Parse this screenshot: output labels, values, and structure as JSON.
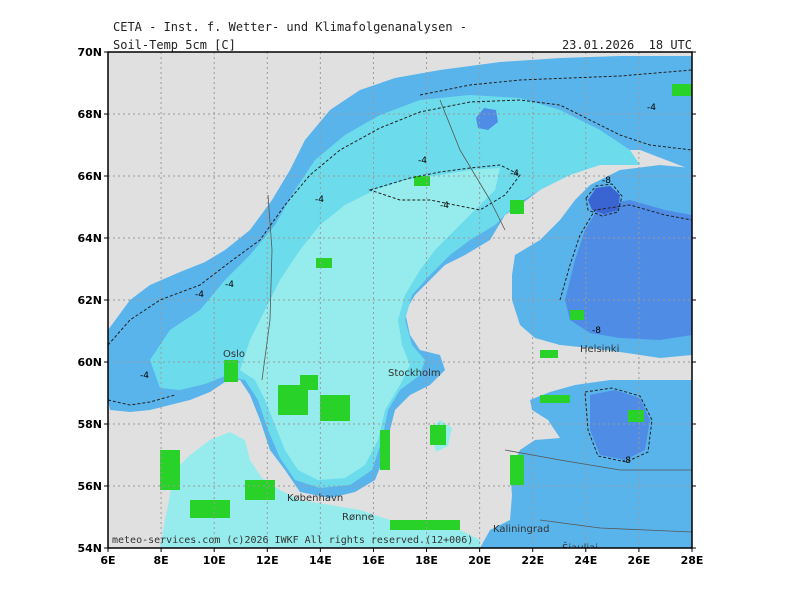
{
  "header": {
    "line1": "CETA - Inst. f. Wetter- und Klimafolgenanalysen -",
    "param": "Soil-Temp_5cm [C]",
    "datetime": "23.01.2026  18 UTC"
  },
  "axes": {
    "lat_labels": [
      "54N",
      "56N",
      "58N",
      "60N",
      "62N",
      "64N",
      "66N",
      "68N",
      "70N"
    ],
    "lon_labels": [
      "6E",
      "8E",
      "10E",
      "12E",
      "14E",
      "16E",
      "18E",
      "20E",
      "22E",
      "24E",
      "26E",
      "28E"
    ]
  },
  "cities": {
    "oslo": "Oslo",
    "stockholm": "Stockholm",
    "helsinki": "Helsinki",
    "kobenhavn": "København",
    "ronne": "Rønne",
    "kaliningrad": "Kaliningrad",
    "siauliai": "Šiauliai"
  },
  "contour_labels": [
    "-4",
    "-4",
    "-4",
    "-4",
    "-4",
    "-4",
    "-4",
    "-4",
    "-8",
    "-8",
    "-8"
  ],
  "footer": "meteo-services.com (c)2026 IWKF   All rights reserved.(12+006)",
  "colors": {
    "land_none": "#e0e0e0",
    "warm": "#96ecec",
    "cyan": "#6cdcec",
    "mid": "#5ab4ec",
    "cold": "#4e8ce6",
    "verycold": "#3a64d2",
    "green": "#28d228"
  }
}
